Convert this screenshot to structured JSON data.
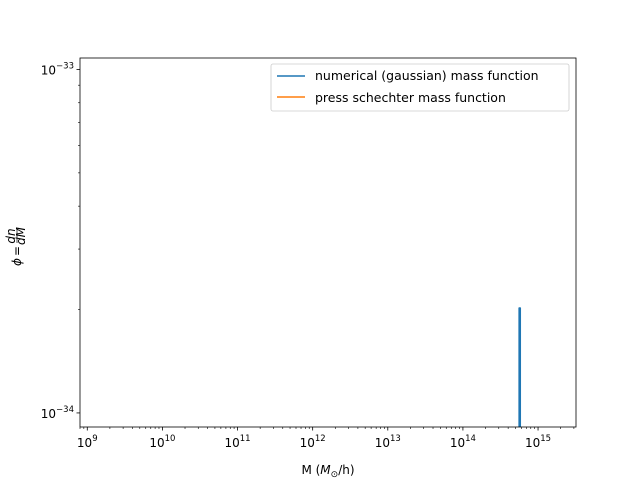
{
  "chart_data": {
    "type": "line",
    "title": "",
    "xscale": "log",
    "yscale": "log",
    "xlabel": "M ($M_\\odot$/h)",
    "ylabel": "$\\phi = \\frac{dn}{dM}$",
    "xlim": [
      800000000.0,
      3200000000000000.0
    ],
    "ylim": [
      9.1e-35,
      1.08e-33
    ],
    "grid": false,
    "legend_position": "top-right",
    "x_ticks": [
      {
        "base": "10",
        "exp": "9",
        "value": 1000000000.0
      },
      {
        "base": "10",
        "exp": "10",
        "value": 10000000000.0
      },
      {
        "base": "10",
        "exp": "11",
        "value": 100000000000.0
      },
      {
        "base": "10",
        "exp": "12",
        "value": 1000000000000.0
      },
      {
        "base": "10",
        "exp": "13",
        "value": 10000000000000.0
      },
      {
        "base": "10",
        "exp": "14",
        "value": 100000000000000.0
      },
      {
        "base": "10",
        "exp": "15",
        "value": 1000000000000000.0
      }
    ],
    "y_ticks": [
      {
        "base": "10",
        "exp": "−34",
        "value": 1e-34
      },
      {
        "base": "10",
        "exp": "−33",
        "value": 1e-33
      }
    ],
    "series": [
      {
        "name": "numerical (gaussian) mass function",
        "color": "#1f77b4",
        "points": [
          [
            560000000000000.0,
            8e-35
          ],
          [
            560000000000000.0,
            2.02e-34
          ],
          [
            580000000000000.0,
            2.02e-34
          ],
          [
            580000000000000.0,
            8e-35
          ]
        ]
      },
      {
        "name": "press schechter mass function",
        "color": "#ff7f0e",
        "points": []
      }
    ]
  },
  "labels": {
    "xlabel_text": "M (",
    "xlabel_sym": "M",
    "xlabel_sub": "⊙",
    "xlabel_tail": "/h)",
    "ylabel_phi": "ϕ",
    "ylabel_eq": "=",
    "ylabel_num": "dn",
    "ylabel_den": "dM"
  }
}
